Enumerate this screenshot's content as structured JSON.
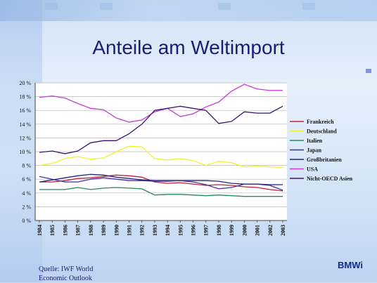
{
  "slide": {
    "title": "Anteile am Weltimport",
    "source_line1": "Quelle: IWF World",
    "source_line2": "Economic Outlook",
    "brand": "BMWi"
  },
  "chart_data": {
    "type": "line",
    "title": "Anteile am Weltimport",
    "xlabel": "",
    "ylabel": "",
    "ylim": [
      0,
      20
    ],
    "y_ticks": [
      "0 %",
      "2 %",
      "4 %",
      "6 %",
      "8 %",
      "10 %",
      "12 %",
      "14 %",
      "16 %",
      "18 %",
      "20 %"
    ],
    "x": [
      "1984",
      "1985",
      "1986",
      "1987",
      "1988",
      "1989",
      "1990",
      "1991",
      "1992",
      "1993",
      "1994",
      "1995",
      "1996",
      "1997",
      "1998",
      "1999",
      "2000",
      "2001",
      "2002",
      "2003"
    ],
    "grid": true,
    "legend_position": "right",
    "series": [
      {
        "name": "Frankreich",
        "color": "#c0203a",
        "values": [
          5.6,
          5.6,
          5.8,
          6.1,
          6.2,
          6.4,
          6.6,
          6.5,
          6.3,
          5.6,
          5.4,
          5.5,
          5.3,
          5.1,
          5.2,
          5.1,
          4.9,
          4.8,
          4.5,
          4.3
        ]
      },
      {
        "name": "Deutschland",
        "color": "#f2f22a",
        "values": [
          8.0,
          8.3,
          9.0,
          9.3,
          8.9,
          9.1,
          10.0,
          10.8,
          10.7,
          9.0,
          8.8,
          9.0,
          8.7,
          8.0,
          8.6,
          8.4,
          7.8,
          7.9,
          7.8,
          7.7
        ]
      },
      {
        "name": "Italien",
        "color": "#1f8a63",
        "values": [
          4.5,
          4.5,
          4.5,
          4.8,
          4.5,
          4.7,
          4.8,
          4.7,
          4.6,
          3.7,
          3.8,
          3.8,
          3.7,
          3.6,
          3.7,
          3.6,
          3.5,
          3.5,
          3.5,
          3.5
        ]
      },
      {
        "name": "Japan",
        "color": "#4b2aa6",
        "values": [
          6.4,
          6.0,
          5.6,
          5.6,
          6.0,
          6.2,
          6.0,
          5.8,
          5.8,
          5.7,
          5.7,
          5.8,
          5.6,
          5.2,
          4.6,
          4.8,
          5.3,
          5.3,
          5.1,
          4.4
        ]
      },
      {
        "name": "Großbritanien",
        "color": "#25227a",
        "values": [
          5.6,
          5.9,
          6.2,
          6.5,
          6.7,
          6.6,
          6.3,
          6.1,
          5.9,
          5.8,
          5.8,
          5.8,
          5.8,
          5.8,
          5.7,
          5.4,
          5.3,
          5.3,
          5.2,
          5.2
        ]
      },
      {
        "name": "USA",
        "color": "#c83ad8",
        "values": [
          17.9,
          18.1,
          17.8,
          17.0,
          16.3,
          16.1,
          14.9,
          14.3,
          14.6,
          15.8,
          16.3,
          15.1,
          15.5,
          16.5,
          17.2,
          18.8,
          19.8,
          19.1,
          18.9,
          18.9
        ]
      },
      {
        "name": "Nicht-OECD Asien",
        "color": "#3a1470",
        "values": [
          9.9,
          10.1,
          9.7,
          10.1,
          11.3,
          11.6,
          11.6,
          12.6,
          14.0,
          16.0,
          16.3,
          16.6,
          16.3,
          16.0,
          14.1,
          14.4,
          15.8,
          15.6,
          15.6,
          16.6
        ]
      }
    ]
  }
}
